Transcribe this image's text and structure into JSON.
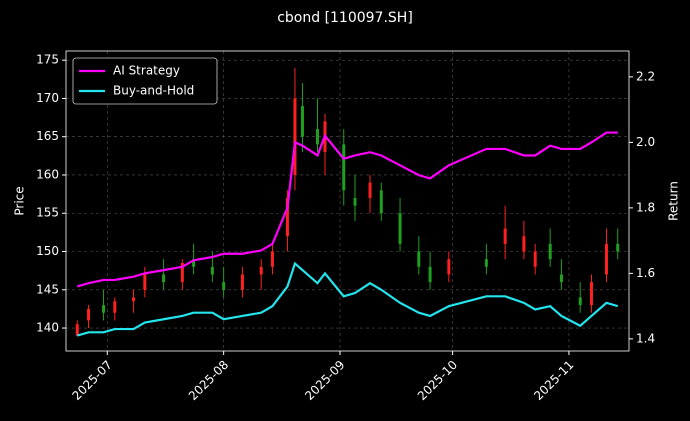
{
  "chart_data": {
    "type": "candlestick",
    "title": "cbond [110097.SH]",
    "y_label": "Price",
    "y2_label": "Return",
    "x": [
      "2025-06-23",
      "2025-06-26",
      "2025-06-30",
      "2025-07-03",
      "2025-07-08",
      "2025-07-11",
      "2025-07-16",
      "2025-07-21",
      "2025-07-24",
      "2025-07-29",
      "2025-08-01",
      "2025-08-06",
      "2025-08-11",
      "2025-08-14",
      "2025-08-18",
      "2025-08-20",
      "2025-08-22",
      "2025-08-26",
      "2025-08-28",
      "2025-09-02",
      "2025-09-05",
      "2025-09-09",
      "2025-09-12",
      "2025-09-17",
      "2025-09-22",
      "2025-09-25",
      "2025-09-30",
      "2025-10-10",
      "2025-10-15",
      "2025-10-20",
      "2025-10-23",
      "2025-10-27",
      "2025-10-30",
      "2025-11-04",
      "2025-11-07",
      "2025-11-11",
      "2025-11-14"
    ],
    "open": [
      139,
      141,
      143,
      142,
      143.5,
      145,
      147,
      146,
      149,
      148,
      146,
      145,
      147,
      148,
      152,
      160,
      169,
      166,
      163,
      164,
      157,
      157,
      158,
      155,
      150,
      148,
      147,
      149,
      151,
      150,
      148,
      151,
      147,
      144,
      143,
      147,
      151
    ],
    "high": [
      141,
      143,
      145,
      144,
      145,
      148,
      149,
      149,
      151,
      150,
      148,
      148,
      149,
      151,
      158,
      174,
      172,
      170,
      168,
      166,
      160,
      160,
      159,
      157,
      152,
      150,
      150,
      151,
      156,
      154,
      151,
      153,
      149,
      146,
      147,
      153,
      153
    ],
    "low": [
      139,
      140,
      141,
      141,
      142,
      144,
      145,
      145,
      147,
      146,
      144,
      144,
      145,
      147,
      150,
      158,
      163,
      163,
      160,
      156,
      154,
      155,
      154,
      150,
      147,
      145,
      146,
      147,
      149,
      149,
      147,
      148,
      145,
      142,
      142,
      146,
      149
    ],
    "close": [
      140.5,
      142.5,
      142,
      143.5,
      144,
      147,
      146,
      148.5,
      148,
      147,
      145,
      147,
      148,
      150,
      157,
      170,
      165,
      164,
      167,
      158,
      156,
      159,
      155,
      151,
      148,
      146,
      149,
      148,
      153,
      152,
      150,
      149,
      146,
      143,
      146,
      151,
      150
    ],
    "up_color": "#ff2020",
    "down_color": "#1fa01f",
    "series": [
      {
        "name": "AI Strategy",
        "color": "#ff00ff",
        "axis": "y2",
        "values": [
          1.56,
          1.57,
          1.58,
          1.58,
          1.59,
          1.6,
          1.61,
          1.62,
          1.64,
          1.65,
          1.66,
          1.66,
          1.67,
          1.69,
          1.8,
          2.0,
          1.99,
          1.96,
          2.02,
          1.95,
          1.96,
          1.97,
          1.96,
          1.93,
          1.9,
          1.89,
          1.93,
          1.98,
          1.98,
          1.96,
          1.96,
          1.99,
          1.98,
          1.98,
          2.0,
          2.03,
          2.03
        ]
      },
      {
        "name": "Buy-and-Hold",
        "color": "#22e5ee",
        "axis": "y2",
        "values": [
          1.41,
          1.42,
          1.42,
          1.43,
          1.43,
          1.45,
          1.46,
          1.47,
          1.48,
          1.48,
          1.46,
          1.47,
          1.48,
          1.5,
          1.56,
          1.63,
          1.61,
          1.57,
          1.6,
          1.53,
          1.54,
          1.57,
          1.55,
          1.51,
          1.48,
          1.47,
          1.5,
          1.53,
          1.53,
          1.51,
          1.49,
          1.5,
          1.47,
          1.44,
          1.47,
          1.51,
          1.5
        ]
      }
    ],
    "xlim": [
      "2025-06-20",
      "2025-11-17"
    ],
    "xticks": [
      {
        "value": "2025-07-01",
        "label": "2025-07"
      },
      {
        "value": "2025-08-01",
        "label": "2025-08"
      },
      {
        "value": "2025-09-01",
        "label": "2025-09"
      },
      {
        "value": "2025-10-01",
        "label": "2025-10"
      },
      {
        "value": "2025-11-01",
        "label": "2025-11"
      }
    ],
    "ylim": [
      137,
      176.2
    ],
    "yticks": [
      140,
      145,
      150,
      155,
      160,
      165,
      170,
      175
    ],
    "y2lim": [
      1.363,
      2.279
    ],
    "y2ticks": [
      1.4,
      1.6,
      1.8,
      {
        "value": 2,
        "label": "2.0"
      },
      2.2
    ],
    "grid": true,
    "legend": "upper left"
  }
}
